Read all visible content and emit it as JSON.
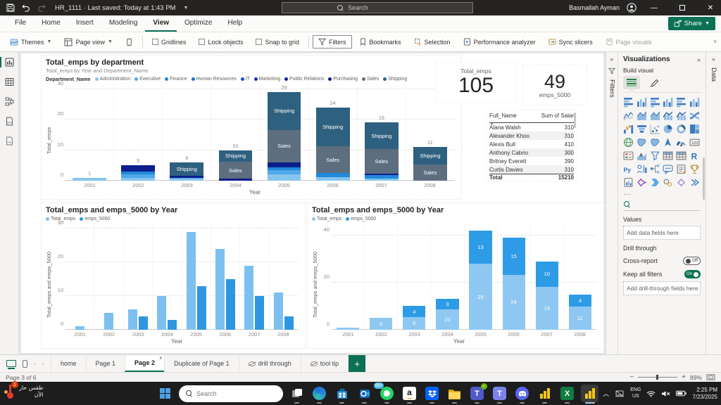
{
  "window": {
    "title": "HR_1111 · Last saved: Today at 1:43 PM",
    "search_placeholder": "Search",
    "user_name": "Basmallah Ayman"
  },
  "ribbon": {
    "tabs": [
      "File",
      "Home",
      "Insert",
      "Modeling",
      "View",
      "Optimize",
      "Help"
    ],
    "active_tab": "View",
    "share_label": "Share",
    "commands": {
      "themes": "Themes",
      "page_view": "Page view",
      "gridlines": "Gridlines",
      "lock_objects": "Lock objects",
      "snap_to_grid": "Snap to grid",
      "filters": "Filters",
      "bookmarks": "Bookmarks",
      "selection": "Selection",
      "performance_analyzer": "Performance analyzer",
      "sync_slicers": "Sync slicers",
      "page_visuals": "Page visuals"
    }
  },
  "cards": {
    "total_emps_label": "Total_emps",
    "total_emps_value": "105",
    "emps_5000_value": "49",
    "emps_5000_label": "emps_5000"
  },
  "table": {
    "headers": [
      "Full_Name",
      "Sum of Salar"
    ],
    "rows": [
      [
        "Alana Walsh",
        "310"
      ],
      [
        "Alexander Khoo",
        "310"
      ],
      [
        "Alexis Bull",
        "410"
      ],
      [
        "Anthony Cabrio",
        "300"
      ],
      [
        "Britney Everett",
        "390"
      ],
      [
        "Curtis Davies",
        "310"
      ]
    ],
    "total_label": "Total",
    "total_value": "15210"
  },
  "chart_data": [
    {
      "type": "bar",
      "stacked": true,
      "title": "Total_emps by department",
      "subtitle": "Total_emps by Year and Department_Name",
      "legend_title": "Department_Name",
      "legend": [
        "Administration",
        "Executive",
        "Finance",
        "Human Resources",
        "IT",
        "Marketing",
        "Public Relations",
        "Purchasing",
        "Sales",
        "Shipping"
      ],
      "colors": {
        "Administration": "#86c5ee",
        "Executive": "#4fa8e8",
        "Finance": "#2389da",
        "Human Resources": "#1b6fc9",
        "IT": "#0d50c8",
        "Marketing": "#0f35b5",
        "Public Relations": "#12239e",
        "Purchasing": "#0b1e8c",
        "Sales": "#5d6e7f",
        "Shipping": "#2e607f"
      },
      "categories": [
        "2001",
        "2002",
        "2003",
        "2004",
        "2005",
        "2006",
        "2007",
        "2008"
      ],
      "totals": [
        1,
        5,
        6,
        10,
        29,
        24,
        19,
        11
      ],
      "segments": [
        [
          [
            "Administration",
            1
          ]
        ],
        [
          [
            "Administration",
            1
          ],
          [
            "Executive",
            1
          ],
          [
            "Finance",
            1
          ],
          [
            "Purchasing",
            2
          ]
        ],
        [
          [
            "Administration",
            1
          ],
          [
            "Executive",
            0.5
          ],
          [
            "Purchasing",
            1
          ],
          [
            "Shipping",
            3.5
          ]
        ],
        [
          [
            "Purchasing",
            1
          ],
          [
            "Sales",
            6
          ],
          [
            "Shipping",
            3
          ]
        ],
        [
          [
            "Administration",
            2.5
          ],
          [
            "Executive",
            1.5
          ],
          [
            "Finance",
            1
          ],
          [
            "Purchasing",
            2
          ],
          [
            "Sales",
            10
          ],
          [
            "Shipping",
            12
          ]
        ],
        [
          [
            "Administration",
            1.5
          ],
          [
            "Finance",
            1.5
          ],
          [
            "Sales",
            8
          ],
          [
            "Shipping",
            13
          ]
        ],
        [
          [
            "Administration",
            1
          ],
          [
            "Finance",
            1.5
          ],
          [
            "Purchasing",
            0.5
          ],
          [
            "Sales",
            7.5
          ],
          [
            "Shipping",
            8.5
          ]
        ],
        [
          [
            "Sales",
            5
          ],
          [
            "Shipping",
            6
          ]
        ]
      ],
      "xlabel": "Year",
      "ylabel": "Total_emps",
      "yticks": [
        0,
        10,
        20,
        30
      ],
      "ymax": 31.5
    },
    {
      "type": "bar",
      "grouping": "clustered",
      "title": "Total_emps and emps_5000 by Year",
      "legend": [
        "Total_emps",
        "emps_5000"
      ],
      "colors": [
        "#7cc0ef",
        "#2e96e0"
      ],
      "categories": [
        "2001",
        "2002",
        "2003",
        "2004",
        "2005",
        "2006",
        "2007",
        "2008"
      ],
      "series": [
        {
          "name": "Total_emps",
          "values": [
            1,
            5,
            6,
            10,
            29,
            24,
            19,
            11
          ]
        },
        {
          "name": "emps_5000",
          "values": [
            0,
            0,
            4,
            3,
            13,
            15,
            10,
            4
          ]
        }
      ],
      "xlabel": "Year",
      "ylabel": "Total_emps and emps_5000",
      "yticks": [
        0,
        10,
        20,
        30
      ],
      "ymax": 31.5
    },
    {
      "type": "bar",
      "stacked": true,
      "title": "Total_emps and emps_5000 by Year",
      "legend": [
        "Total_emps",
        "emps_5000"
      ],
      "colors": [
        "#8ec8f2",
        "#2e9be6"
      ],
      "categories": [
        "2001",
        "2002",
        "2003",
        "2004",
        "2005",
        "2006",
        "2007",
        "2008"
      ],
      "series": [
        {
          "name": "Total_emps",
          "values": [
            1,
            5,
            6,
            10,
            29,
            24,
            19,
            11
          ]
        },
        {
          "name": "emps_5000",
          "values": [
            0,
            0,
            4,
            3,
            13,
            15,
            10,
            4
          ]
        }
      ],
      "xlabel": "Year",
      "ylabel": "Total_emps and emps_5000",
      "yticks": [
        0,
        20,
        40
      ],
      "ymax": 45
    }
  ],
  "panels": {
    "filters_pane": {
      "title": "Filters"
    },
    "data_pane": {
      "title": "Data"
    },
    "visualizations": {
      "title": "Visualizations",
      "build_visual_label": "Build visual",
      "values_label": "Values",
      "add_data_placeholder": "Add data fields here",
      "drill_through_label": "Drill through",
      "cross_report_label": "Cross-report",
      "cross_report_state": "Off",
      "keep_all_filters_label": "Keep all filters",
      "keep_all_filters_state": "On",
      "add_drill_placeholder": "Add drill-through fields here",
      "more_label": "...",
      "gallery": [
        {
          "n": "stacked-bar-chart",
          "k": "bar"
        },
        {
          "n": "stacked-column-chart",
          "k": "col"
        },
        {
          "n": "clustered-bar-chart",
          "k": "bar"
        },
        {
          "n": "clustered-column-chart",
          "k": "col"
        },
        {
          "n": "100-stacked-bar-chart",
          "k": "bar"
        },
        {
          "n": "100-stacked-column-chart",
          "k": "col"
        },
        {
          "n": "line-chart",
          "k": "line"
        },
        {
          "n": "area-chart",
          "k": "area"
        },
        {
          "n": "stacked-area-chart",
          "k": "area"
        },
        {
          "n": "line-and-stacked-column-chart",
          "k": "combo"
        },
        {
          "n": "line-and-clustered-column-chart",
          "k": "combo"
        },
        {
          "n": "ribbon-chart",
          "k": "ribbon"
        },
        {
          "n": "waterfall-chart",
          "k": "water"
        },
        {
          "n": "funnel-chart",
          "k": "funnel"
        },
        {
          "n": "scatter-chart",
          "k": "scatter"
        },
        {
          "n": "pie-chart",
          "k": "pie"
        },
        {
          "n": "donut-chart",
          "k": "donut"
        },
        {
          "n": "treemap",
          "k": "treemap"
        },
        {
          "n": "map",
          "k": "map"
        },
        {
          "n": "filled-map",
          "k": "map2"
        },
        {
          "n": "shape-map",
          "k": "map2"
        },
        {
          "n": "azure-map",
          "k": "azmap"
        },
        {
          "n": "gauge",
          "k": "gauge"
        },
        {
          "n": "card",
          "k": "card"
        },
        {
          "n": "multi-row-card",
          "k": "mcard"
        },
        {
          "n": "kpi",
          "k": "kpi"
        },
        {
          "n": "slicer",
          "k": "slicer"
        },
        {
          "n": "table",
          "k": "table"
        },
        {
          "n": "matrix",
          "k": "table"
        },
        {
          "n": "r-script-visual",
          "k": "R"
        },
        {
          "n": "python-visual",
          "k": "Py"
        },
        {
          "n": "key-influencers",
          "k": "key"
        },
        {
          "n": "decomposition-tree",
          "k": "decomp"
        },
        {
          "n": "qa-visual",
          "k": "qa"
        },
        {
          "n": "smart-narrative",
          "k": "narr"
        },
        {
          "n": "metrics",
          "k": "trophy"
        },
        {
          "n": "paginated-report",
          "k": "report"
        },
        {
          "n": "power-apps-visual",
          "k": "papps"
        },
        {
          "n": "power-automate-visual",
          "k": "pauto"
        },
        {
          "n": "arcgis-map",
          "k": "arcgis"
        },
        {
          "n": "shape",
          "k": "diamond"
        },
        {
          "n": "get-more-visuals",
          "k": "more"
        }
      ]
    }
  },
  "pagebar": {
    "tabs": [
      {
        "label": "home"
      },
      {
        "label": "Page 1"
      },
      {
        "label": "Page 2",
        "active": true,
        "closable": true
      },
      {
        "label": "Duplicate of Page 1"
      },
      {
        "label": "drill through",
        "hidden": true
      },
      {
        "label": "tool tip",
        "hidden": true
      }
    ],
    "add_label": "+"
  },
  "statusbar": {
    "page_indicator": "Page 3 of 6",
    "zoom": "89%"
  },
  "taskbar": {
    "weather_line1": "طقس حار",
    "weather_line2": "الآن",
    "weather_badge": "1",
    "search_placeholder": "Search",
    "whatsapp_badge": "99+",
    "tray": {
      "lang_line1": "ENG",
      "lang_line2": "US",
      "time": "2:25 PM",
      "date": "7/23/2025"
    }
  }
}
